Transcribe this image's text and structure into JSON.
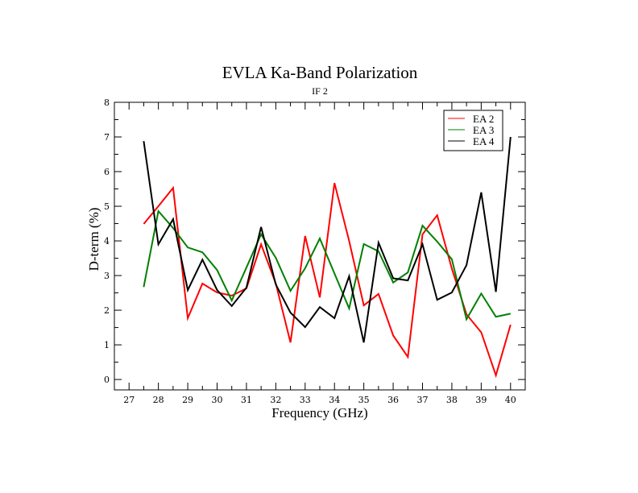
{
  "chart_data": {
    "type": "line",
    "title": "EVLA Ka-Band Polarization",
    "subtitle": "IF 2",
    "xlabel": "Frequency (GHz)",
    "ylabel": "D-term (%)",
    "xlim": [
      26.5,
      40.5
    ],
    "ylim": [
      -0.3,
      8
    ],
    "xticks": [
      27,
      28,
      29,
      30,
      31,
      32,
      33,
      34,
      35,
      36,
      37,
      38,
      39,
      40
    ],
    "xtick_labels": [
      "27",
      "28",
      "29",
      "30",
      "31",
      "32",
      "33",
      "34",
      "35",
      "36",
      "37",
      "38",
      "39",
      "40"
    ],
    "xminor_step": 0.5,
    "yticks": [
      0,
      1,
      2,
      3,
      4,
      5,
      6,
      7,
      8
    ],
    "ytick_labels": [
      "0",
      "1",
      "2",
      "3",
      "4",
      "5",
      "6",
      "7",
      "8"
    ],
    "yminor_step": 0.5,
    "grid": false,
    "legend_position": "top-right",
    "x": [
      27.5,
      28,
      28.5,
      29,
      29.5,
      30,
      30.5,
      31,
      31.5,
      32,
      32.5,
      33,
      33.5,
      34,
      34.5,
      35,
      35.5,
      36,
      36.5,
      37,
      37.5,
      38,
      38.5,
      39,
      39.5,
      40
    ],
    "series": [
      {
        "name": "EA 2",
        "color": "#ff0000",
        "values": [
          4.49,
          5.0,
          5.53,
          1.77,
          2.77,
          2.51,
          2.42,
          2.63,
          3.9,
          2.77,
          1.07,
          4.14,
          2.37,
          5.67,
          4.0,
          2.14,
          2.47,
          1.27,
          0.65,
          4.19,
          4.74,
          3.2,
          1.88,
          1.36,
          0.12,
          1.58
        ]
      },
      {
        "name": "EA 3",
        "color": "#008000",
        "values": [
          2.67,
          4.86,
          4.37,
          3.81,
          3.67,
          3.16,
          2.28,
          3.23,
          4.19,
          3.51,
          2.56,
          3.21,
          4.07,
          3.06,
          2.05,
          3.91,
          3.7,
          2.8,
          3.09,
          4.44,
          3.98,
          3.47,
          1.74,
          2.48,
          1.81,
          1.9
        ]
      },
      {
        "name": "EA 4",
        "color": "#000000",
        "values": [
          6.88,
          3.9,
          4.63,
          2.58,
          3.46,
          2.58,
          2.12,
          2.65,
          4.4,
          2.74,
          1.93,
          1.51,
          2.09,
          1.77,
          2.98,
          1.07,
          3.95,
          2.92,
          2.86,
          3.9,
          2.3,
          2.51,
          3.3,
          5.4,
          2.53,
          7.0
        ]
      }
    ]
  }
}
